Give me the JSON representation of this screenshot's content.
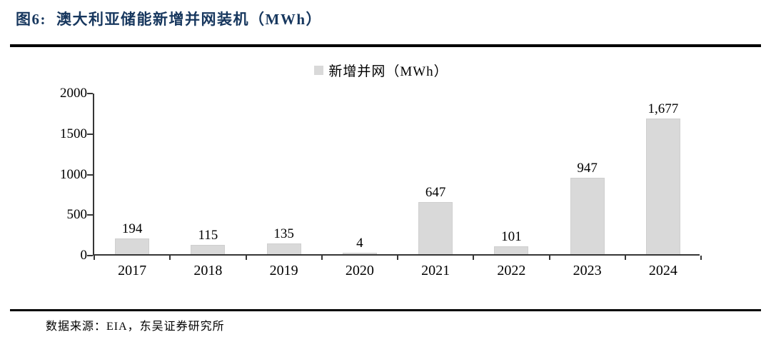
{
  "header": {
    "figure_label": "图6:",
    "title": "澳大利亚储能新增并网装机（MWh）"
  },
  "footer": {
    "source": "数据来源：EIA，东吴证券研究所"
  },
  "colors": {
    "title_navy": "#17375e",
    "bar_fill": "#d9d9d9",
    "axis": "#363636",
    "rule_black": "#000000"
  },
  "chart_data": {
    "type": "bar",
    "title": "",
    "legend": [
      "新增并网（MWh）"
    ],
    "legend_position": "top-center",
    "categories": [
      "2017",
      "2018",
      "2019",
      "2020",
      "2021",
      "2022",
      "2023",
      "2024"
    ],
    "series": [
      {
        "name": "新增并网（MWh）",
        "values": [
          194,
          115,
          135,
          4,
          647,
          101,
          947,
          1677
        ],
        "value_labels": [
          "194",
          "115",
          "135",
          "4",
          "647",
          "101",
          "947",
          "1,677"
        ]
      }
    ],
    "xlabel": "",
    "ylabel": "",
    "ylim": [
      0,
      2000
    ],
    "yticks": [
      0,
      500,
      1000,
      1500,
      2000
    ],
    "grid": false,
    "bar_color": "#d9d9d9"
  }
}
